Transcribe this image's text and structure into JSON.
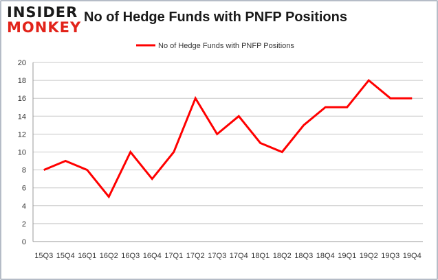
{
  "logo": {
    "line1": "INSIDER",
    "line2": "MONKEY"
  },
  "chart_data": {
    "type": "line",
    "title": "No of Hedge Funds with PNFP Positions",
    "categories": [
      "15Q3",
      "15Q4",
      "16Q1",
      "16Q2",
      "16Q3",
      "16Q4",
      "17Q1",
      "17Q2",
      "17Q3",
      "17Q4",
      "18Q1",
      "18Q2",
      "18Q3",
      "18Q4",
      "19Q1",
      "19Q2",
      "19Q3",
      "19Q4"
    ],
    "series": [
      {
        "name": "No of Hedge Funds with PNFP Positions",
        "color": "#ff0000",
        "values": [
          8,
          9,
          8,
          5,
          10,
          7,
          10,
          16,
          12,
          14,
          11,
          10,
          13,
          15,
          15,
          18,
          16,
          16
        ]
      }
    ],
    "yticks": [
      0,
      2,
      4,
      6,
      8,
      10,
      12,
      14,
      16,
      18,
      20
    ],
    "ylim": [
      0,
      20
    ],
    "xlabel": "",
    "ylabel": "",
    "grid": true,
    "legend": "top-center"
  }
}
